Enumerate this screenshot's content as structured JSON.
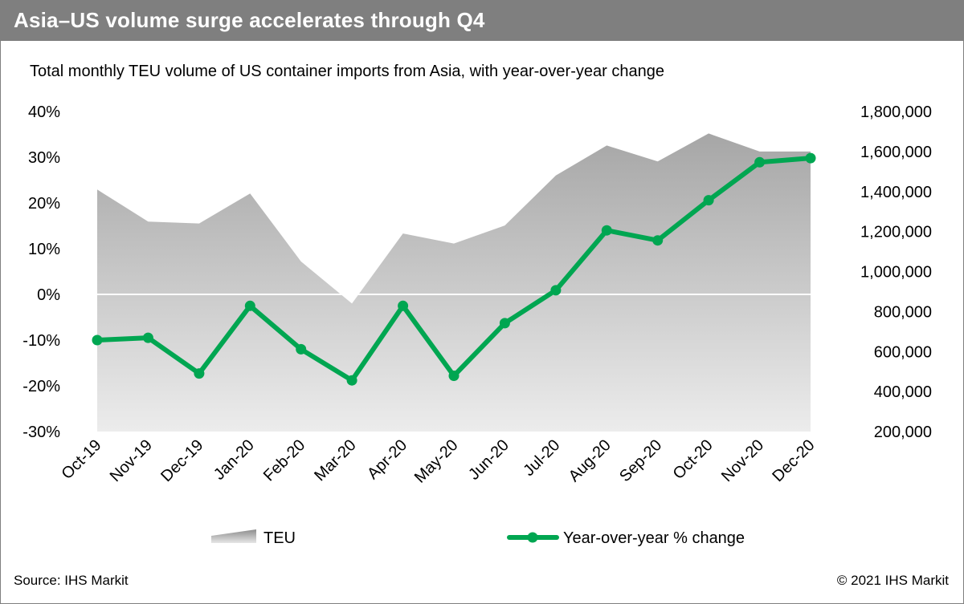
{
  "header": {
    "title": "Asia–US volume surge accelerates through Q4"
  },
  "chart": {
    "subtitle": "Total monthly TEU volume of US container imports from Asia, with year-over-year change"
  },
  "footer": {
    "source": "Source: IHS Markit",
    "copyright": "© 2021 IHS Markit"
  },
  "colors": {
    "header_bg": "#7f7f7f",
    "line": "#00a651",
    "area_top": "#a6a6a6",
    "area_bottom": "#ececec"
  },
  "chart_data": {
    "type": "area+line",
    "categories": [
      "Oct-19",
      "Nov-19",
      "Dec-19",
      "Jan-20",
      "Feb-20",
      "Mar-20",
      "Apr-20",
      "May-20",
      "Jun-20",
      "Jul-20",
      "Aug-20",
      "Sep-20",
      "Oct-20",
      "Nov-20",
      "Dec-20"
    ],
    "left_axis": {
      "ticks": [
        "40%",
        "30%",
        "20%",
        "10%",
        "0%",
        "-10%",
        "-20%",
        "-30%"
      ],
      "ylim": [
        -30,
        40
      ],
      "unit": "%"
    },
    "right_axis": {
      "ticks": [
        "1,800,000",
        "1,600,000",
        "1,400,000",
        "1,200,000",
        "1,000,000",
        "800,000",
        "600,000",
        "400,000",
        "200,000"
      ],
      "ylim": [
        200000,
        1800000
      ]
    },
    "series": [
      {
        "name": "TEU",
        "kind": "area",
        "axis": "right",
        "values": [
          1410000,
          1250000,
          1240000,
          1390000,
          1050000,
          840000,
          1190000,
          1140000,
          1230000,
          1480000,
          1630000,
          1550000,
          1690000,
          1600000,
          1600000
        ]
      },
      {
        "name": "Year-over-year % change",
        "kind": "line",
        "axis": "left",
        "values": [
          -10.0,
          -9.5,
          -17.3,
          -2.5,
          -12.0,
          -18.8,
          -2.5,
          -17.8,
          -6.3,
          0.9,
          14.0,
          11.8,
          20.6,
          28.9,
          29.8
        ]
      }
    ],
    "grid": false,
    "legend": "bottom"
  }
}
